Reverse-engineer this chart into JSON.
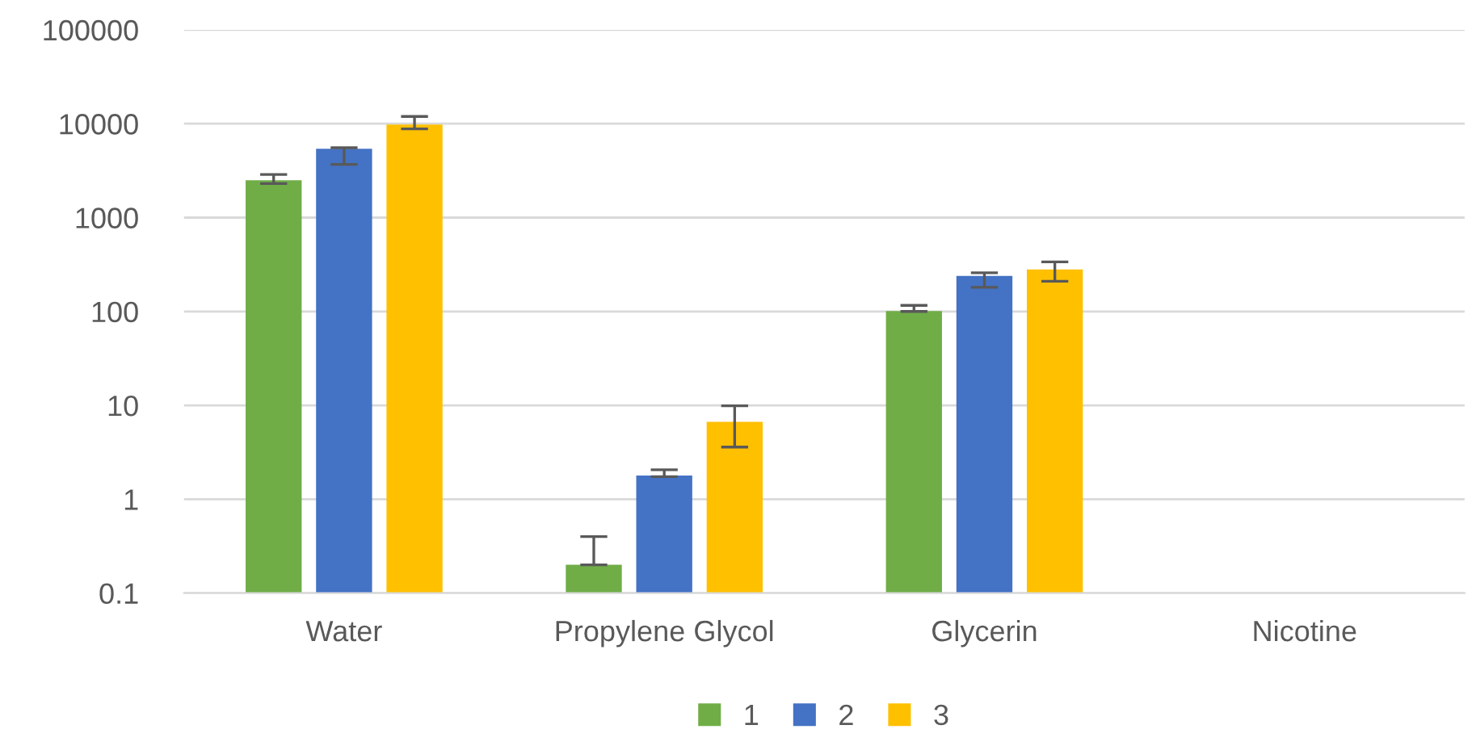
{
  "chart_data": {
    "type": "bar",
    "categories": [
      "Water",
      "Propylene Glycol",
      "Glycerin",
      "Nicotine"
    ],
    "series": [
      {
        "name": "1",
        "color": "#70ad47",
        "values": [
          2500,
          0.2,
          101,
          null
        ],
        "errors": [
          [
            2300,
            2880
          ],
          [
            0.2,
            0.4
          ],
          [
            100,
            116
          ],
          null
        ]
      },
      {
        "name": "2",
        "color": "#4472c4",
        "values": [
          5420,
          1.79,
          239,
          null
        ],
        "errors": [
          [
            3690,
            5550
          ],
          [
            1.74,
            2.06
          ],
          [
            181,
            258
          ],
          null
        ]
      },
      {
        "name": "3",
        "color": "#ffc000",
        "values": [
          9800,
          6.68,
          280,
          null
        ],
        "errors": [
          [
            8810,
            11950
          ],
          [
            3.59,
            9.9
          ],
          [
            210,
            337
          ],
          null
        ]
      }
    ],
    "log": "y",
    "ylim": [
      0.1,
      100000
    ],
    "yticks": [
      {
        "value": 0.1,
        "label": "0.1"
      },
      1,
      10,
      100,
      1000,
      10000,
      100000
    ],
    "grid": "y",
    "legend": "bottom"
  }
}
